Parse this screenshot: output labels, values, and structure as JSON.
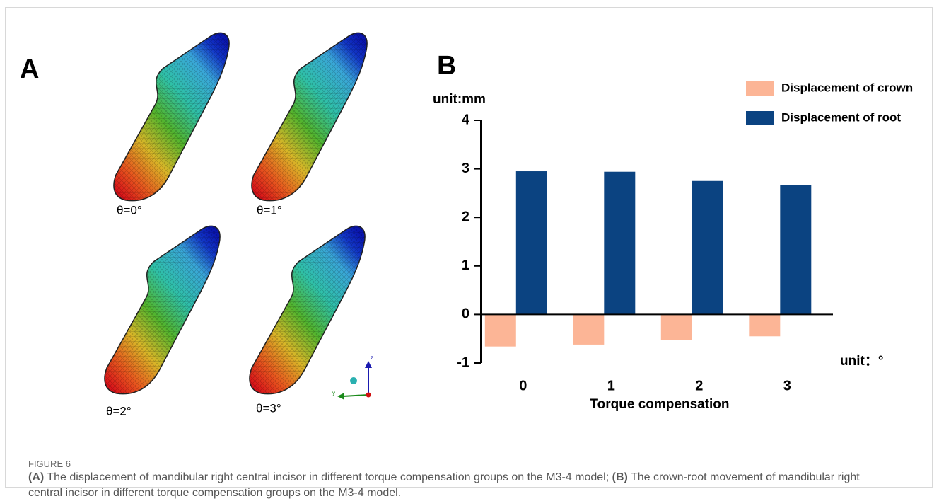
{
  "figure": {
    "label": "FIGURE 6",
    "caption": [
      {
        "label": "(A)",
        "text": " The displacement of mandibular right central incisor in different torque compensation groups on the M3-4 model; "
      },
      {
        "label": "(B)",
        "text": " The crown-root movement of mandibular right central incisor in different torque compensation groups on the M3-4 model."
      }
    ]
  },
  "panel_a": {
    "label": "A",
    "labels": [
      "θ=0°",
      "θ=1°",
      "θ=2°",
      "θ=3°"
    ],
    "axis_labels": [
      "z",
      "y"
    ]
  },
  "chart_data": {
    "type": "bar",
    "panel_label": "B",
    "y_label": "unit:mm",
    "x_unit": "unit：°",
    "x_label": "Torque compensation",
    "categories": [
      "0",
      "1",
      "2",
      "3"
    ],
    "series": [
      {
        "name": "Displacement of crown",
        "color": "#fcb596",
        "values": [
          -0.66,
          -0.62,
          -0.53,
          -0.45
        ]
      },
      {
        "name": "Displacement of root",
        "color": "#0b4381",
        "values": [
          2.95,
          2.94,
          2.75,
          2.66
        ]
      }
    ],
    "ylim": [
      -1,
      4
    ],
    "yticks": [
      -1,
      0,
      1,
      2,
      3,
      4
    ]
  }
}
